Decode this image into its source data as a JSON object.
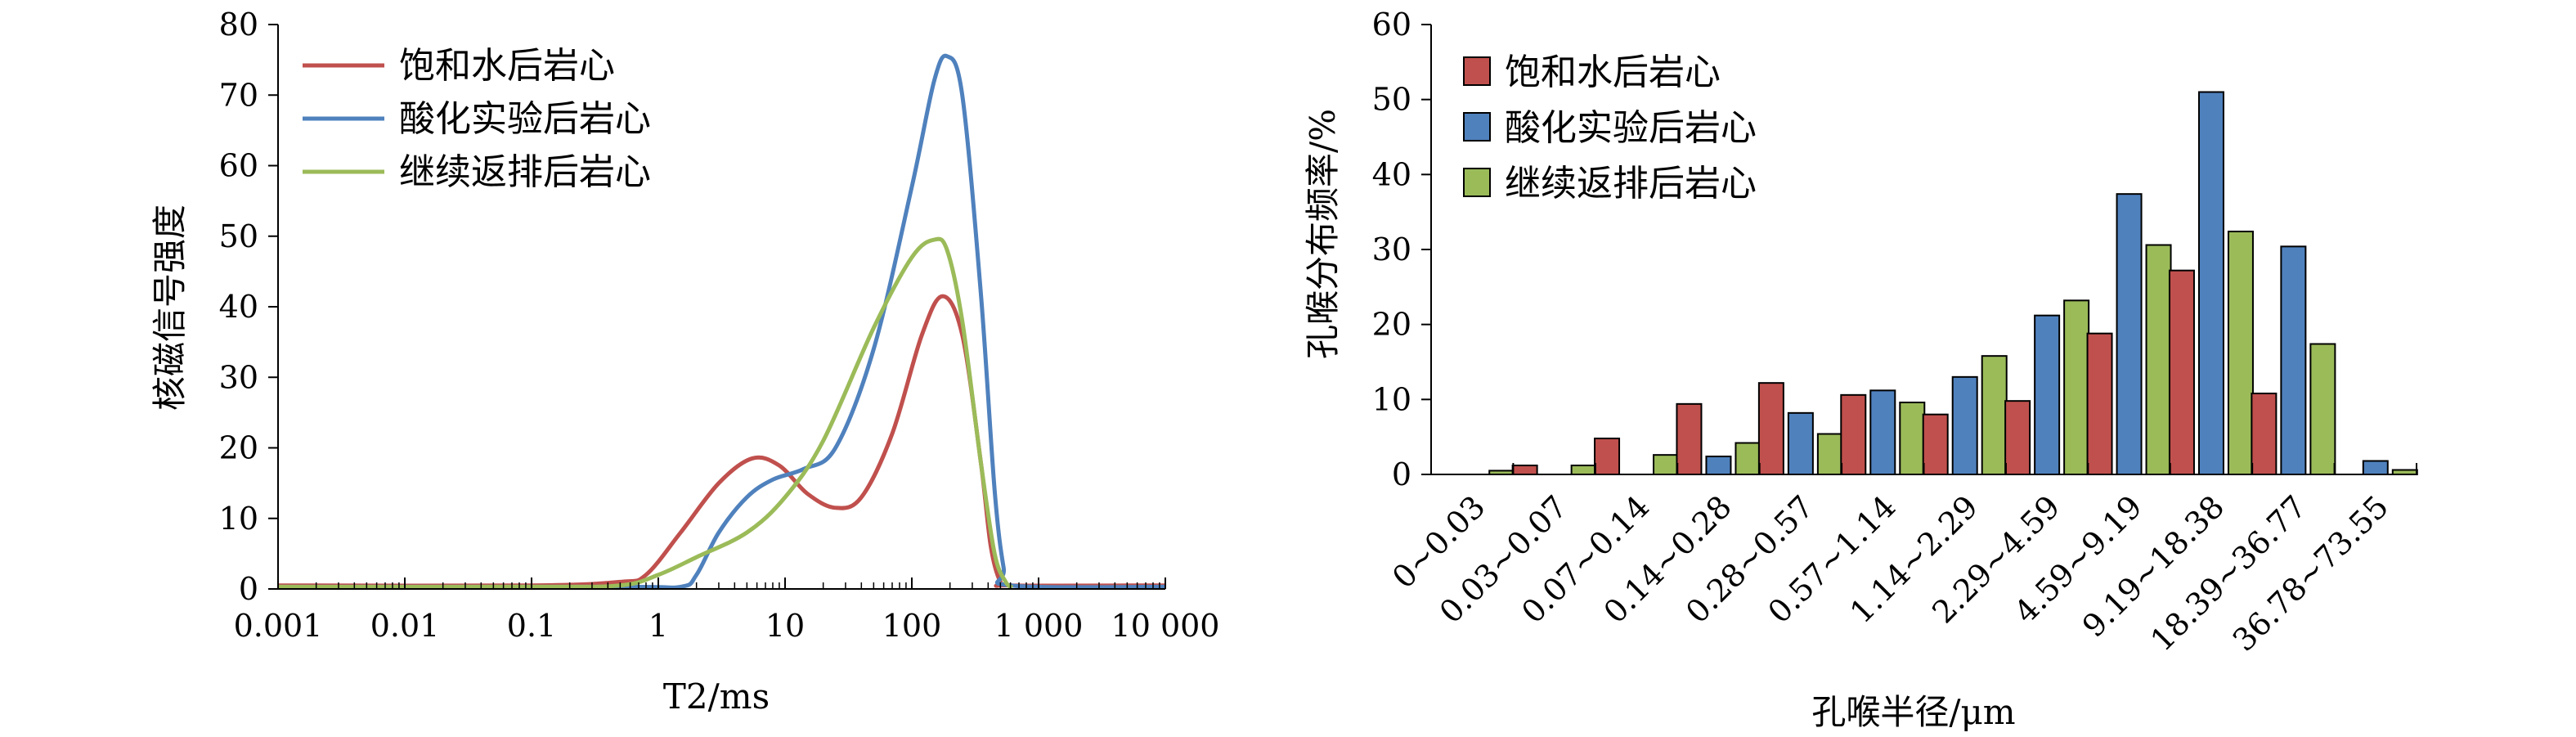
{
  "chart_data": [
    {
      "type": "line",
      "xlabel": "T2/ms",
      "ylabel": "核磁信号强度",
      "x_scale": "log",
      "xlim": [
        0.001,
        10000
      ],
      "ylim": [
        0,
        80
      ],
      "x_ticks": [
        0.001,
        0.01,
        0.1,
        1,
        10,
        100,
        1000,
        10000
      ],
      "x_tick_labels": [
        "0.001",
        "0.01",
        "0.1",
        "1",
        "10",
        "100",
        "1 000",
        "10 000"
      ],
      "y_ticks": [
        0,
        10,
        20,
        30,
        40,
        50,
        60,
        70,
        80
      ],
      "y_tick_labels": [
        "0",
        "10",
        "20",
        "30",
        "40",
        "50",
        "60",
        "70",
        "80"
      ],
      "grid": false,
      "legend_position": "top-left",
      "series": [
        {
          "name": "饱和水后岩心",
          "color": "#c0504d",
          "x": [
            0.001,
            0.1,
            0.5,
            0.8,
            1.5,
            3,
            5.5,
            9,
            15,
            25,
            40,
            70,
            120,
            175,
            250,
            350,
            420,
            500,
            600,
            10000
          ],
          "y": [
            0.5,
            0.5,
            1,
            2,
            8,
            15,
            18.5,
            17.5,
            13.5,
            11.5,
            13,
            22,
            36,
            41.5,
            36,
            18,
            6,
            1,
            0.5,
            0.5
          ]
        },
        {
          "name": "酸化实验后岩心",
          "color": "#4f81bd",
          "x": [
            0.001,
            0.5,
            1.5,
            2,
            3,
            5,
            8,
            14,
            25,
            50,
            100,
            150,
            190,
            250,
            350,
            450,
            530,
            600,
            10000
          ],
          "y": [
            0.3,
            0.3,
            0.3,
            2,
            8,
            13,
            15.5,
            17,
            20,
            34,
            57,
            72,
            75.5,
            70,
            42,
            14,
            3,
            0.5,
            0.3
          ]
        },
        {
          "name": "继续返排后岩心",
          "color": "#9bbb59",
          "x": [
            0.001,
            0.1,
            0.5,
            1,
            2,
            5,
            10,
            20,
            50,
            100,
            150,
            190,
            250,
            350,
            450,
            550,
            620
          ],
          "y": [
            0.3,
            0.3,
            0.5,
            2,
            4.5,
            8,
            13,
            21,
            37,
            47,
            49.5,
            48,
            38,
            18,
            5,
            1,
            0.2
          ]
        }
      ]
    },
    {
      "type": "bar",
      "xlabel": "孔喉半径/μm",
      "ylabel": "孔喉分布频率/%",
      "ylim": [
        0,
        60
      ],
      "y_ticks": [
        0,
        10,
        20,
        30,
        40,
        50,
        60
      ],
      "y_tick_labels": [
        "0",
        "10",
        "20",
        "30",
        "40",
        "50",
        "60"
      ],
      "grid": false,
      "legend_position": "top-left",
      "categories": [
        "0~0.03",
        "0.03~0.07",
        "0.07~0.14",
        "0.14~0.28",
        "0.28~0.57",
        "0.57~1.14",
        "1.14~2.29",
        "2.29~4.59",
        "4.59~9.19",
        "9.19~18.38",
        "18.39~36.77",
        "36.78~73.55"
      ],
      "series": [
        {
          "name": "饱和水后岩心",
          "color": "#c0504d",
          "values": [
            0,
            1.2,
            4.8,
            9.4,
            12.2,
            10.6,
            8.0,
            9.8,
            18.8,
            27.2,
            10.8,
            0
          ]
        },
        {
          "name": "酸化实验后岩心",
          "color": "#4f81bd",
          "values": [
            0,
            0,
            0,
            2.4,
            8.2,
            11.2,
            13.0,
            21.2,
            37.4,
            51.0,
            30.4,
            1.8
          ]
        },
        {
          "name": "继续返排后岩心",
          "color": "#9bbb59",
          "values": [
            0.5,
            1.2,
            2.6,
            4.2,
            5.4,
            9.6,
            15.8,
            23.2,
            30.6,
            32.4,
            17.4,
            0.6
          ]
        }
      ]
    }
  ]
}
